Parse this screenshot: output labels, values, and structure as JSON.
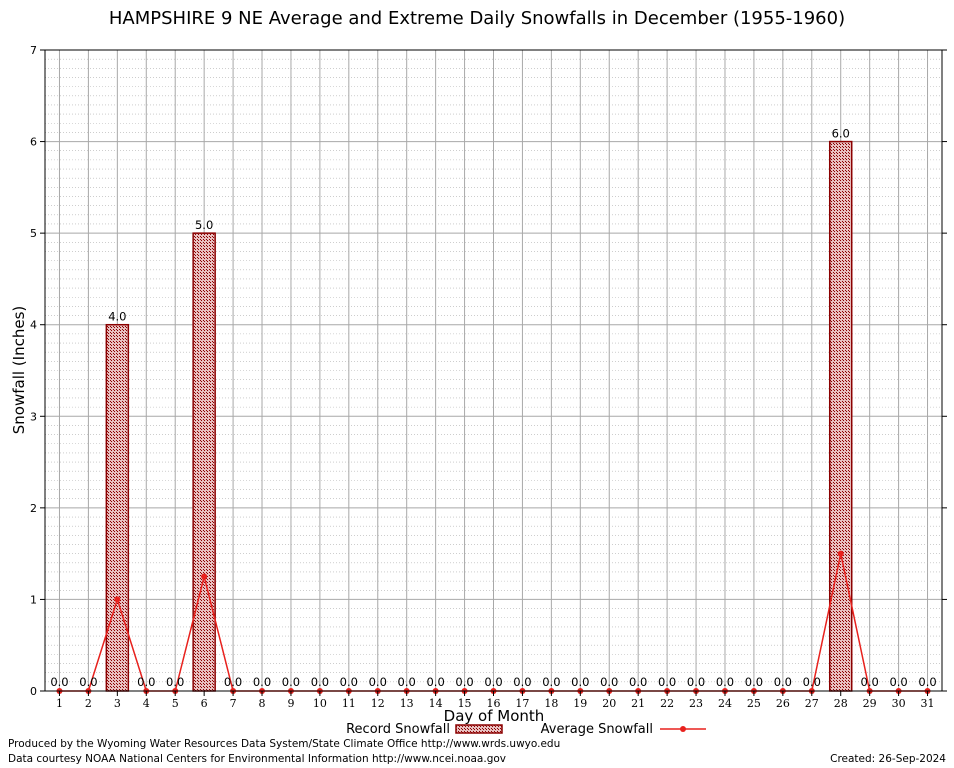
{
  "chart_data": {
    "type": "bar",
    "title": "HAMPSHIRE 9 NE Average and Extreme Daily Snowfalls in December (1955-1960)",
    "xlabel": "Day of Month",
    "ylabel": "Snowfall (Inches)",
    "ylim": [
      0,
      7
    ],
    "yticks": [
      "0",
      "1",
      "2",
      "3",
      "4",
      "5",
      "6",
      "7"
    ],
    "categories": [
      "1",
      "2",
      "3",
      "4",
      "5",
      "6",
      "7",
      "8",
      "9",
      "10",
      "11",
      "12",
      "13",
      "14",
      "15",
      "16",
      "17",
      "18",
      "19",
      "20",
      "21",
      "22",
      "23",
      "24",
      "25",
      "26",
      "27",
      "28",
      "29",
      "30",
      "31"
    ],
    "grid": true,
    "legend_position": "bottom-center",
    "series": [
      {
        "name": "Record Snowfall",
        "type": "bar",
        "color": "#8b0000",
        "values": [
          0,
          0,
          4,
          0,
          0,
          5,
          0,
          0,
          0,
          0,
          0,
          0,
          0,
          0,
          0,
          0,
          0,
          0,
          0,
          0,
          0,
          0,
          0,
          0,
          0,
          0,
          0,
          6,
          0,
          0,
          0
        ],
        "labels": [
          "0.0",
          "0.0",
          "4.0",
          "0.0",
          "0.0",
          "5.0",
          "0.0",
          "0.0",
          "0.0",
          "0.0",
          "0.0",
          "0.0",
          "0.0",
          "0.0",
          "0.0",
          "0.0",
          "0.0",
          "0.0",
          "0.0",
          "0.0",
          "0.0",
          "0.0",
          "0.0",
          "0.0",
          "0.0",
          "0.0",
          "0.0",
          "6.0",
          "0.0",
          "0.0",
          "0.0"
        ]
      },
      {
        "name": "Average Snowfall",
        "type": "line",
        "color": "#e8211d",
        "values": [
          0,
          0,
          1.0,
          0,
          0,
          1.25,
          0,
          0,
          0,
          0,
          0,
          0,
          0,
          0,
          0,
          0,
          0,
          0,
          0,
          0,
          0,
          0,
          0,
          0,
          0,
          0,
          0,
          1.5,
          0,
          0,
          0
        ]
      }
    ]
  },
  "footer": {
    "produced": "Produced by the Wyoming Water Resources Data System/State Climate Office http://www.wrds.uwyo.edu",
    "courtesy": "Data courtesy NOAA National Centers for Environmental Information http://www.ncei.noaa.gov",
    "created": "Created:  26-Sep-2024"
  }
}
